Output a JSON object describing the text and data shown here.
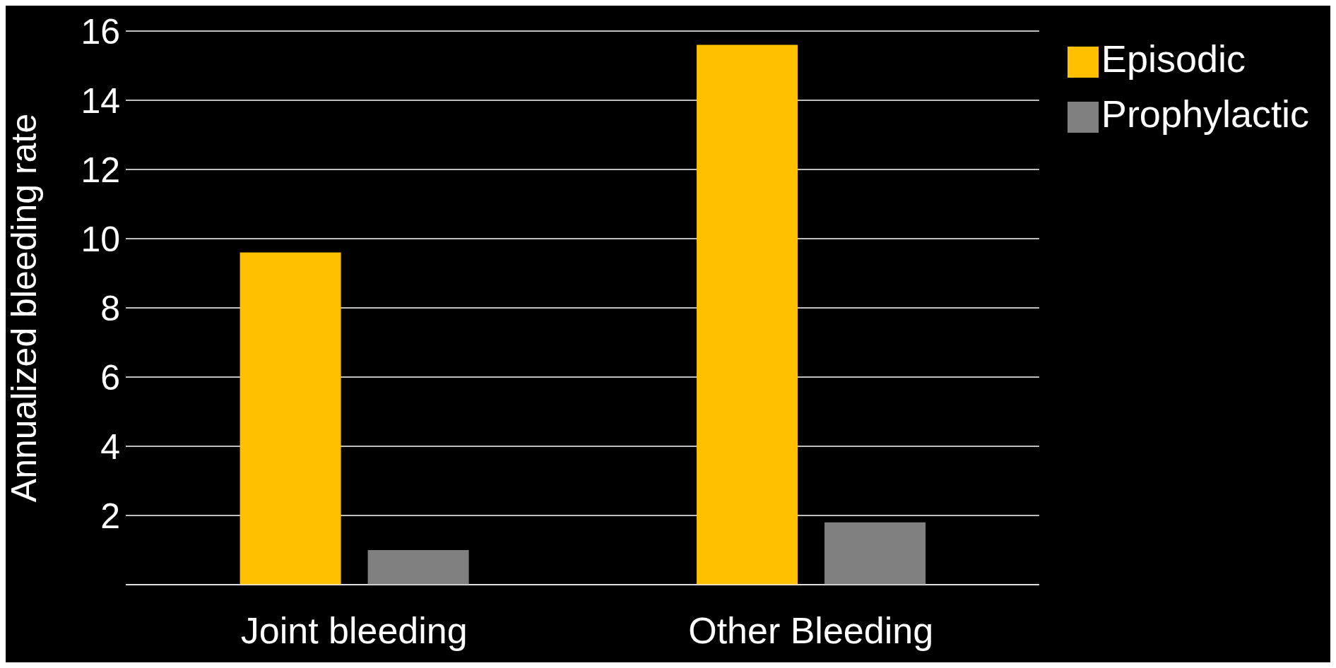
{
  "chart_data": {
    "type": "bar",
    "ylabel": "Annualized bleeding rate",
    "categories": [
      "Joint bleeding",
      "Other Bleeding"
    ],
    "series": [
      {
        "name": "Episodic",
        "color": "#ffc000",
        "values": [
          9.6,
          15.6
        ]
      },
      {
        "name": "Prophylactic",
        "color": "#808080",
        "values": [
          1.0,
          1.8
        ]
      }
    ],
    "ylim": [
      0,
      16
    ],
    "yticks": [
      {
        "value": 0,
        "label": null
      },
      2,
      4,
      6,
      8,
      10,
      12,
      14,
      16
    ],
    "grid": "y",
    "legend": "top right"
  }
}
